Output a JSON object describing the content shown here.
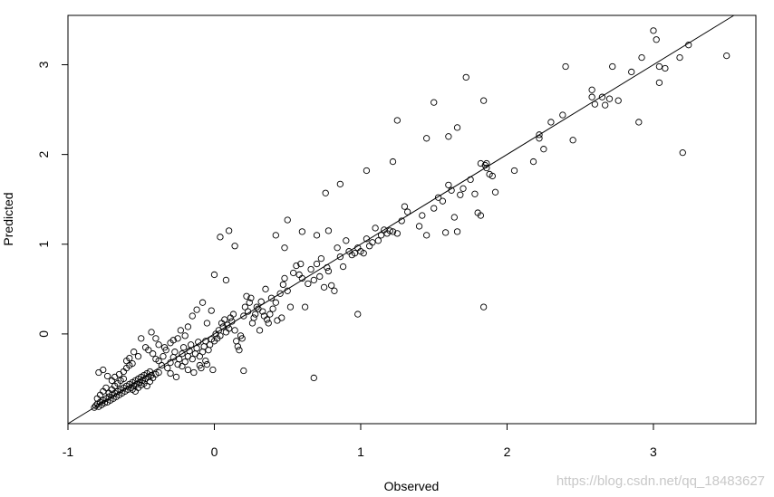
{
  "chart_data": {
    "type": "scatter",
    "xlabel": "Observed",
    "ylabel": "Predicted",
    "xlim": [
      -1,
      3.7
    ],
    "ylim": [
      -1,
      3.55
    ],
    "x_ticks": [
      -1,
      0,
      1,
      2,
      3
    ],
    "y_ticks": [
      0,
      1,
      2,
      3
    ],
    "grid": false,
    "reference_line": {
      "slope": 1,
      "intercept": 0,
      "color": "#000000"
    },
    "marker": {
      "shape": "open-circle",
      "color": "#000000"
    },
    "points": [
      [
        -0.82,
        -0.82
      ],
      [
        -0.81,
        -0.8
      ],
      [
        -0.8,
        -0.78
      ],
      [
        -0.79,
        -0.81
      ],
      [
        -0.78,
        -0.76
      ],
      [
        -0.77,
        -0.79
      ],
      [
        -0.76,
        -0.74
      ],
      [
        -0.75,
        -0.77
      ],
      [
        -0.74,
        -0.72
      ],
      [
        -0.73,
        -0.76
      ],
      [
        -0.72,
        -0.7
      ],
      [
        -0.71,
        -0.74
      ],
      [
        -0.7,
        -0.68
      ],
      [
        -0.69,
        -0.72
      ],
      [
        -0.68,
        -0.66
      ],
      [
        -0.67,
        -0.7
      ],
      [
        -0.66,
        -0.64
      ],
      [
        -0.65,
        -0.68
      ],
      [
        -0.64,
        -0.62
      ],
      [
        -0.63,
        -0.66
      ],
      [
        -0.62,
        -0.6
      ],
      [
        -0.61,
        -0.64
      ],
      [
        -0.6,
        -0.58
      ],
      [
        -0.59,
        -0.62
      ],
      [
        -0.58,
        -0.56
      ],
      [
        -0.57,
        -0.6
      ],
      [
        -0.56,
        -0.54
      ],
      [
        -0.55,
        -0.58
      ],
      [
        -0.54,
        -0.52
      ],
      [
        -0.53,
        -0.56
      ],
      [
        -0.52,
        -0.5
      ],
      [
        -0.51,
        -0.54
      ],
      [
        -0.5,
        -0.48
      ],
      [
        -0.49,
        -0.52
      ],
      [
        -0.48,
        -0.46
      ],
      [
        -0.47,
        -0.5
      ],
      [
        -0.46,
        -0.44
      ],
      [
        -0.45,
        -0.48
      ],
      [
        -0.44,
        -0.42
      ],
      [
        -0.43,
        -0.46
      ],
      [
        -0.8,
        -0.72
      ],
      [
        -0.78,
        -0.68
      ],
      [
        -0.76,
        -0.64
      ],
      [
        -0.74,
        -0.6
      ],
      [
        -0.72,
        -0.66
      ],
      [
        -0.7,
        -0.62
      ],
      [
        -0.68,
        -0.58
      ],
      [
        -0.66,
        -0.55
      ],
      [
        -0.64,
        -0.52
      ],
      [
        -0.62,
        -0.5
      ],
      [
        -0.79,
        -0.43
      ],
      [
        -0.76,
        -0.4
      ],
      [
        -0.73,
        -0.47
      ],
      [
        -0.7,
        -0.52
      ],
      [
        -0.68,
        -0.48
      ],
      [
        -0.65,
        -0.45
      ],
      [
        -0.62,
        -0.42
      ],
      [
        -0.6,
        -0.38
      ],
      [
        -0.58,
        -0.35
      ],
      [
        -0.56,
        -0.33
      ],
      [
        -0.56,
        -0.62
      ],
      [
        -0.54,
        -0.64
      ],
      [
        -0.52,
        -0.6
      ],
      [
        -0.5,
        -0.57
      ],
      [
        -0.48,
        -0.55
      ],
      [
        -0.46,
        -0.58
      ],
      [
        -0.44,
        -0.53
      ],
      [
        -0.42,
        -0.49
      ],
      [
        -0.4,
        -0.45
      ],
      [
        -0.38,
        -0.43
      ],
      [
        -0.6,
        -0.3
      ],
      [
        -0.58,
        -0.27
      ],
      [
        -0.55,
        -0.2
      ],
      [
        -0.52,
        -0.25
      ],
      [
        -0.5,
        -0.05
      ],
      [
        -0.47,
        -0.15
      ],
      [
        -0.45,
        -0.18
      ],
      [
        -0.43,
        0.02
      ],
      [
        -0.42,
        -0.22
      ],
      [
        -0.4,
        -0.28
      ],
      [
        -0.38,
        -0.3
      ],
      [
        -0.36,
        -0.35
      ],
      [
        -0.35,
        -0.25
      ],
      [
        -0.33,
        -0.18
      ],
      [
        -0.32,
        -0.38
      ],
      [
        -0.3,
        -0.32
      ],
      [
        -0.28,
        -0.26
      ],
      [
        -0.27,
        -0.2
      ],
      [
        -0.25,
        -0.34
      ],
      [
        -0.24,
        -0.28
      ],
      [
        -0.22,
        -0.22
      ],
      [
        -0.21,
        -0.15
      ],
      [
        -0.2,
        -0.31
      ],
      [
        -0.18,
        -0.25
      ],
      [
        -0.17,
        -0.19
      ],
      [
        -0.16,
        -0.12
      ],
      [
        -0.15,
        -0.28
      ],
      [
        -0.13,
        -0.22
      ],
      [
        -0.12,
        -0.16
      ],
      [
        -0.11,
        -0.09
      ],
      [
        -0.1,
        -0.25
      ],
      [
        -0.09,
        -0.38
      ],
      [
        -0.08,
        -0.2
      ],
      [
        -0.07,
        -0.14
      ],
      [
        -0.06,
        -0.08
      ],
      [
        -0.05,
        -0.34
      ],
      [
        -0.04,
        -0.18
      ],
      [
        -0.03,
        -0.12
      ],
      [
        -0.02,
        -0.06
      ],
      [
        -0.01,
        -0.4
      ],
      [
        -0.3,
        -0.1
      ],
      [
        -0.28,
        -0.07
      ],
      [
        -0.25,
        -0.05
      ],
      [
        -0.23,
        0.04
      ],
      [
        -0.2,
        -0.02
      ],
      [
        -0.18,
        0.08
      ],
      [
        -0.15,
        0.2
      ],
      [
        -0.12,
        0.27
      ],
      [
        -0.08,
        0.35
      ],
      [
        -0.05,
        0.12
      ],
      [
        -0.4,
        -0.05
      ],
      [
        -0.38,
        -0.12
      ],
      [
        -0.34,
        -0.15
      ],
      [
        -0.3,
        -0.44
      ],
      [
        -0.26,
        -0.48
      ],
      [
        -0.22,
        -0.36
      ],
      [
        -0.18,
        -0.4
      ],
      [
        -0.14,
        -0.43
      ],
      [
        -0.1,
        -0.35
      ],
      [
        -0.06,
        -0.3
      ],
      [
        0.0,
        -0.08
      ],
      [
        0.01,
        0.0
      ],
      [
        0.02,
        -0.05
      ],
      [
        0.03,
        0.04
      ],
      [
        0.04,
        -0.02
      ],
      [
        0.05,
        0.12
      ],
      [
        0.06,
        0.08
      ],
      [
        0.07,
        0.16
      ],
      [
        0.08,
        0.02
      ],
      [
        0.09,
        0.1
      ],
      [
        0.1,
        0.06
      ],
      [
        0.11,
        0.18
      ],
      [
        0.12,
        0.14
      ],
      [
        0.13,
        0.22
      ],
      [
        0.14,
        0.04
      ],
      [
        0.15,
        -0.08
      ],
      [
        0.16,
        -0.14
      ],
      [
        0.17,
        -0.18
      ],
      [
        0.18,
        -0.02
      ],
      [
        0.19,
        -0.05
      ],
      [
        0.2,
        0.2
      ],
      [
        0.21,
        0.3
      ],
      [
        0.22,
        0.42
      ],
      [
        0.23,
        0.25
      ],
      [
        0.24,
        0.35
      ],
      [
        0.25,
        0.4
      ],
      [
        0.26,
        0.12
      ],
      [
        0.27,
        0.18
      ],
      [
        0.28,
        0.22
      ],
      [
        0.29,
        0.3
      ],
      [
        0.3,
        0.28
      ],
      [
        0.31,
        0.04
      ],
      [
        0.32,
        0.36
      ],
      [
        0.33,
        0.25
      ],
      [
        0.34,
        0.2
      ],
      [
        0.35,
        0.5
      ],
      [
        0.36,
        0.16
      ],
      [
        0.37,
        0.12
      ],
      [
        0.38,
        0.22
      ],
      [
        0.39,
        0.4
      ],
      [
        0.4,
        0.28
      ],
      [
        0.42,
        0.35
      ],
      [
        0.43,
        0.15
      ],
      [
        0.45,
        0.45
      ],
      [
        0.46,
        0.18
      ],
      [
        0.47,
        0.55
      ],
      [
        0.48,
        0.62
      ],
      [
        0.5,
        0.48
      ],
      [
        0.52,
        0.3
      ],
      [
        0.54,
        0.68
      ],
      [
        0.56,
        0.76
      ],
      [
        0.58,
        0.66
      ],
      [
        0.59,
        0.78
      ],
      [
        0.6,
        0.62
      ],
      [
        0.62,
        0.3
      ],
      [
        0.64,
        0.56
      ],
      [
        0.66,
        0.72
      ],
      [
        0.68,
        0.6
      ],
      [
        0.7,
        0.78
      ],
      [
        0.72,
        0.64
      ],
      [
        0.73,
        0.84
      ],
      [
        0.75,
        0.52
      ],
      [
        0.77,
        0.74
      ],
      [
        0.78,
        0.7
      ],
      [
        0.8,
        0.54
      ],
      [
        0.82,
        0.48
      ],
      [
        0.84,
        0.96
      ],
      [
        0.86,
        0.86
      ],
      [
        0.88,
        0.75
      ],
      [
        0.9,
        1.04
      ],
      [
        0.92,
        0.92
      ],
      [
        0.94,
        0.88
      ],
      [
        0.96,
        0.9
      ],
      [
        0.98,
        0.96
      ],
      [
        1.0,
        0.92
      ],
      [
        1.02,
        0.9
      ],
      [
        1.04,
        1.06
      ],
      [
        1.06,
        0.98
      ],
      [
        1.08,
        1.02
      ],
      [
        1.1,
        1.18
      ],
      [
        1.12,
        1.04
      ],
      [
        1.14,
        1.1
      ],
      [
        1.16,
        1.16
      ],
      [
        1.18,
        1.12
      ],
      [
        1.2,
        1.15
      ],
      [
        1.22,
        1.14
      ],
      [
        1.25,
        1.12
      ],
      [
        1.28,
        1.26
      ],
      [
        1.3,
        1.42
      ],
      [
        1.32,
        1.36
      ],
      [
        1.4,
        1.2
      ],
      [
        1.42,
        1.32
      ],
      [
        1.45,
        1.1
      ],
      [
        1.5,
        1.4
      ],
      [
        1.53,
        1.52
      ],
      [
        1.56,
        1.48
      ],
      [
        1.58,
        1.13
      ],
      [
        1.6,
        1.66
      ],
      [
        1.62,
        1.6
      ],
      [
        1.64,
        1.3
      ],
      [
        1.66,
        1.14
      ],
      [
        1.68,
        1.55
      ],
      [
        1.7,
        1.62
      ],
      [
        1.75,
        1.72
      ],
      [
        1.78,
        1.56
      ],
      [
        1.8,
        1.35
      ],
      [
        1.82,
        1.32
      ],
      [
        1.85,
        1.88
      ],
      [
        1.86,
        1.85
      ],
      [
        1.88,
        1.78
      ],
      [
        1.9,
        1.76
      ],
      [
        1.92,
        1.58
      ],
      [
        1.5,
        2.58
      ],
      [
        1.6,
        2.2
      ],
      [
        1.66,
        2.3
      ],
      [
        1.72,
        2.86
      ],
      [
        1.84,
        2.6
      ],
      [
        1.25,
        2.38
      ],
      [
        1.45,
        2.18
      ],
      [
        1.22,
        1.92
      ],
      [
        0.76,
        1.57
      ],
      [
        0.86,
        1.67
      ],
      [
        1.04,
        1.82
      ],
      [
        0.5,
        1.27
      ],
      [
        0.42,
        1.1
      ],
      [
        0.48,
        0.96
      ],
      [
        0.6,
        1.14
      ],
      [
        0.7,
        1.1
      ],
      [
        0.78,
        1.15
      ],
      [
        0.1,
        1.15
      ],
      [
        0.14,
        0.98
      ],
      [
        0.04,
        1.08
      ],
      [
        0.08,
        0.6
      ],
      [
        0.0,
        0.66
      ],
      [
        -0.02,
        0.26
      ],
      [
        0.98,
        0.22
      ],
      [
        0.68,
        -0.49
      ],
      [
        1.84,
        0.3
      ],
      [
        0.2,
        -0.41
      ],
      [
        1.86,
        1.9
      ],
      [
        2.05,
        1.82
      ],
      [
        2.18,
        1.92
      ],
      [
        2.22,
        2.18
      ],
      [
        2.25,
        2.06
      ],
      [
        2.3,
        2.36
      ],
      [
        2.38,
        2.44
      ],
      [
        2.45,
        2.16
      ],
      [
        2.4,
        2.98
      ],
      [
        2.58,
        2.72
      ],
      [
        2.6,
        2.56
      ],
      [
        2.65,
        2.64
      ],
      [
        2.7,
        2.62
      ],
      [
        2.72,
        2.98
      ],
      [
        2.76,
        2.6
      ],
      [
        2.85,
        2.92
      ],
      [
        2.9,
        2.36
      ],
      [
        2.92,
        3.08
      ],
      [
        3.0,
        3.38
      ],
      [
        3.02,
        3.28
      ],
      [
        3.04,
        2.8
      ],
      [
        3.08,
        2.96
      ],
      [
        3.04,
        2.98
      ],
      [
        3.18,
        3.08
      ],
      [
        3.24,
        3.22
      ],
      [
        3.2,
        2.02
      ],
      [
        3.5,
        3.1
      ],
      [
        2.58,
        2.64
      ],
      [
        2.67,
        2.55
      ],
      [
        2.22,
        2.22
      ],
      [
        1.82,
        1.9
      ]
    ]
  },
  "watermark": "https://blog.csdn.net/qq_18483627"
}
